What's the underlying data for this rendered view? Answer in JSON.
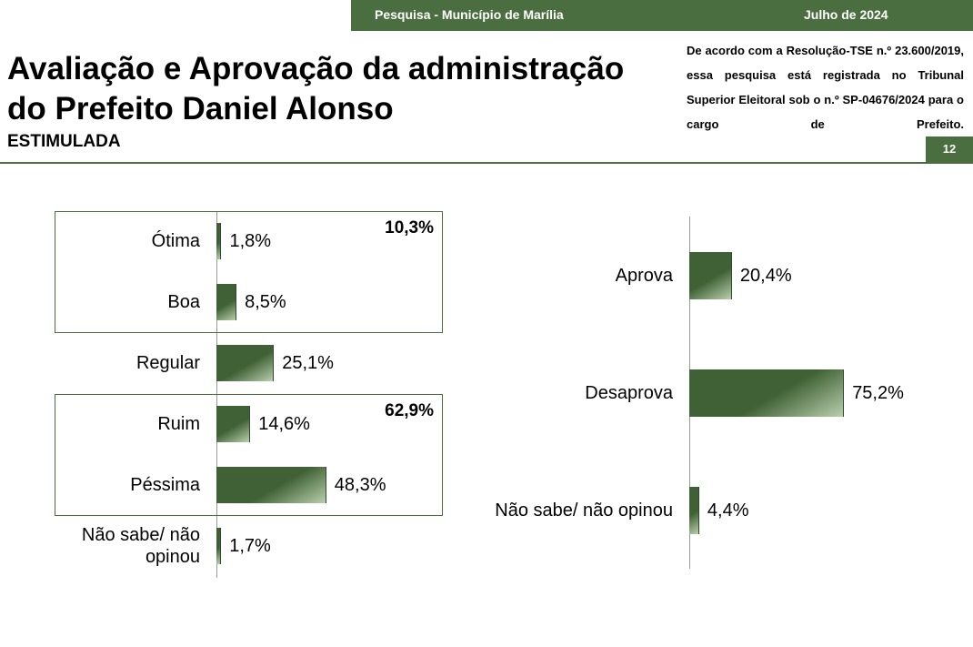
{
  "header": {
    "survey": "Pesquisa - Município de Marília",
    "date": "Julho de 2024",
    "title": [
      "Avaliação e Aprovação da administração",
      "do Prefeito Daniel Alonso"
    ],
    "subtitle": "ESTIMULADA",
    "note": "De acordo com a Resolução-TSE n.º 23.600/2019, essa pesquisa está registrada no Tribunal Superior Eleitoral sob o n.º SP-04676/2024 para o cargo de Prefeito.",
    "page": "12"
  },
  "chart_data": [
    {
      "type": "bar",
      "orientation": "horizontal",
      "color": "#3f6135",
      "categories": [
        "Ótima",
        "Boa",
        "Regular",
        "Ruim",
        "Péssima",
        "Não sabe/ não opinou"
      ],
      "values": [
        1.8,
        8.5,
        25.1,
        14.6,
        48.3,
        1.7
      ],
      "value_labels": [
        "1,8%",
        "8,5%",
        "25,1%",
        "14,6%",
        "48,3%",
        "1,7%"
      ],
      "groups": [
        {
          "members": [
            "Ótima",
            "Boa"
          ],
          "value": 10.3,
          "label": "10,3%"
        },
        {
          "members": [
            "Ruim",
            "Péssima"
          ],
          "value": 62.9,
          "label": "62,9%"
        }
      ]
    },
    {
      "type": "bar",
      "orientation": "horizontal",
      "color": "#3f6135",
      "categories": [
        "Aprova",
        "Desaprova",
        "Não sabe/ não opinou"
      ],
      "values": [
        20.4,
        75.2,
        4.4
      ],
      "value_labels": [
        "20,4%",
        "75,2%",
        "4,4%"
      ]
    }
  ]
}
